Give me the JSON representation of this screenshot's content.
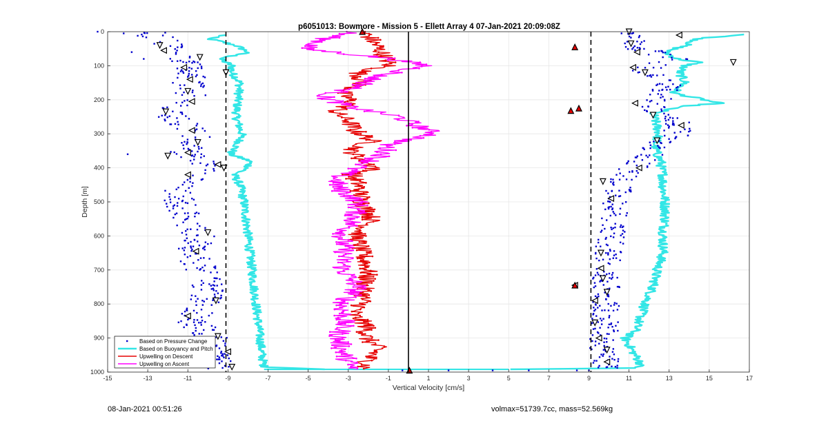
{
  "chart_data": {
    "type": "scatter",
    "title": "p6051013: Bowmore - Mission 5 - Ellett Array 4 07-Jan-2021 20:09:08Z",
    "xlabel": "Vertical Velocity [cm/s]",
    "ylabel": "Depth [m]",
    "xlim": [
      -15,
      17
    ],
    "ylim": [
      0,
      1000
    ],
    "y_reversed": true,
    "grid": true,
    "legend_position": "bottom-left",
    "xticks": [
      -15,
      -13,
      -11,
      -9,
      -7,
      -5,
      -3,
      -1,
      1,
      3,
      5,
      7,
      9,
      11,
      13,
      15,
      17
    ],
    "yticks": [
      0,
      100,
      200,
      300,
      400,
      500,
      600,
      700,
      800,
      900,
      1000
    ],
    "series": [
      {
        "name": "Based on Pressure Change",
        "style": "dots",
        "color": "#0000cd"
      },
      {
        "name": "Based on Buoyancy and Pitch",
        "style": "line",
        "color": "#33e6e6"
      },
      {
        "name": "Upwelling on Descent",
        "style": "line-dots",
        "color": "#e60000"
      },
      {
        "name": "Upwelling on Ascent",
        "style": "line-dots",
        "color": "#ff00ff"
      }
    ],
    "reference_lines": [
      {
        "x": -9.1,
        "style": "dashed",
        "color": "#000000"
      },
      {
        "x": 9.1,
        "style": "dashed",
        "color": "#000000"
      },
      {
        "x": 0,
        "style": "solid",
        "color": "#000000"
      }
    ],
    "profiles": {
      "pressure_left": [
        [
          0,
          -12.8
        ],
        [
          30,
          -12.2
        ],
        [
          50,
          -11.9
        ],
        [
          60,
          -12
        ],
        [
          80,
          -11.2
        ],
        [
          100,
          -11.1
        ],
        [
          120,
          -10.8
        ],
        [
          150,
          -11
        ],
        [
          180,
          -10.8
        ],
        [
          200,
          -11
        ],
        [
          230,
          -12
        ],
        [
          260,
          -11.5
        ],
        [
          290,
          -10.9
        ],
        [
          320,
          -10.5
        ],
        [
          350,
          -11.2
        ],
        [
          380,
          -10.3
        ],
        [
          400,
          -10
        ],
        [
          420,
          -10.8
        ],
        [
          450,
          -11.3
        ],
        [
          500,
          -11.5
        ],
        [
          550,
          -11
        ],
        [
          600,
          -10.4
        ],
        [
          650,
          -10.8
        ],
        [
          700,
          -10.3
        ],
        [
          750,
          -10
        ],
        [
          800,
          -10.2
        ],
        [
          850,
          -10.8
        ],
        [
          900,
          -9.8
        ],
        [
          950,
          -9.6
        ],
        [
          990,
          -9.3
        ]
      ],
      "pressure_right": [
        [
          0,
          11
        ],
        [
          30,
          11.2
        ],
        [
          50,
          11.5
        ],
        [
          80,
          13.5
        ],
        [
          100,
          12
        ],
        [
          120,
          11.8
        ],
        [
          150,
          13
        ],
        [
          200,
          12.5
        ],
        [
          230,
          12.2
        ],
        [
          260,
          13.3
        ],
        [
          300,
          13.5
        ],
        [
          330,
          12.5
        ],
        [
          360,
          12
        ],
        [
          400,
          11.2
        ],
        [
          420,
          10.7
        ],
        [
          450,
          10.5
        ],
        [
          500,
          10.3
        ],
        [
          550,
          10.2
        ],
        [
          600,
          10.1
        ],
        [
          650,
          10
        ],
        [
          700,
          9.9
        ],
        [
          750,
          9.9
        ],
        [
          800,
          9.8
        ],
        [
          850,
          9.8
        ],
        [
          900,
          9.7
        ],
        [
          950,
          9.8
        ],
        [
          990,
          9.9
        ]
      ],
      "buoyancy_left": [
        [
          10,
          -9.2
        ],
        [
          20,
          -10
        ],
        [
          40,
          -8.6
        ],
        [
          60,
          -8
        ],
        [
          80,
          -9.4
        ],
        [
          100,
          -8.8
        ],
        [
          120,
          -8.8
        ],
        [
          150,
          -8.4
        ],
        [
          200,
          -8.5
        ],
        [
          250,
          -8.6
        ],
        [
          300,
          -8.3
        ],
        [
          330,
          -8.5
        ],
        [
          360,
          -8.9
        ],
        [
          380,
          -7.9
        ],
        [
          400,
          -8
        ],
        [
          420,
          -8.7
        ],
        [
          450,
          -8.4
        ],
        [
          500,
          -8.2
        ],
        [
          550,
          -8.1
        ],
        [
          600,
          -8
        ],
        [
          650,
          -7.9
        ],
        [
          700,
          -7.8
        ],
        [
          750,
          -7.7
        ],
        [
          800,
          -7.6
        ],
        [
          850,
          -7.5
        ],
        [
          900,
          -7.4
        ],
        [
          950,
          -7.3
        ],
        [
          985,
          -7.2
        ],
        [
          992,
          -4
        ]
      ],
      "buoyancy_right": [
        [
          8,
          16.8
        ],
        [
          20,
          14.5
        ],
        [
          40,
          13.8
        ],
        [
          60,
          12.8
        ],
        [
          80,
          13.4
        ],
        [
          90,
          14.5
        ],
        [
          100,
          13.8
        ],
        [
          120,
          13.5
        ],
        [
          150,
          13.8
        ],
        [
          180,
          13.2
        ],
        [
          210,
          15.5
        ],
        [
          220,
          13.5
        ],
        [
          240,
          12.2
        ],
        [
          260,
          12.3
        ],
        [
          300,
          12.5
        ],
        [
          330,
          12.3
        ],
        [
          360,
          12.4
        ],
        [
          380,
          12.6
        ],
        [
          400,
          12.6
        ],
        [
          420,
          12.7
        ],
        [
          450,
          12.7
        ],
        [
          500,
          12.8
        ],
        [
          550,
          12.8
        ],
        [
          600,
          12.7
        ],
        [
          650,
          12.7
        ],
        [
          700,
          12.4
        ],
        [
          750,
          12.2
        ],
        [
          800,
          11.8
        ],
        [
          850,
          11.5
        ],
        [
          880,
          11.3
        ],
        [
          900,
          10.8
        ],
        [
          950,
          11.3
        ],
        [
          975,
          11.6
        ],
        [
          988,
          11.4
        ],
        [
          992,
          5
        ]
      ],
      "descent": [
        [
          0,
          -2.2
        ],
        [
          40,
          -1.6
        ],
        [
          80,
          -1.1
        ],
        [
          100,
          -1
        ],
        [
          120,
          -2.5
        ],
        [
          150,
          -2.3
        ],
        [
          180,
          -3.3
        ],
        [
          210,
          -2.8
        ],
        [
          235,
          -3.7
        ],
        [
          260,
          -3
        ],
        [
          290,
          -2.7
        ],
        [
          320,
          -1.8
        ],
        [
          350,
          -2.9
        ],
        [
          380,
          -2.2
        ],
        [
          400,
          -1.6
        ],
        [
          420,
          -2.8
        ],
        [
          450,
          -2.5
        ],
        [
          500,
          -2.3
        ],
        [
          550,
          -1.8
        ],
        [
          600,
          -2.6
        ],
        [
          650,
          -2.3
        ],
        [
          700,
          -2
        ],
        [
          750,
          -2.2
        ],
        [
          800,
          -2.3
        ],
        [
          830,
          -2.8
        ],
        [
          860,
          -2.1
        ],
        [
          900,
          -2.1
        ],
        [
          930,
          -1.5
        ],
        [
          960,
          -2
        ],
        [
          990,
          -2.2
        ]
      ],
      "ascent": [
        [
          0,
          -2.8
        ],
        [
          20,
          -4.1
        ],
        [
          50,
          -5.2
        ],
        [
          80,
          -0.8
        ],
        [
          100,
          0.9
        ],
        [
          130,
          -1.5
        ],
        [
          160,
          -2.4
        ],
        [
          190,
          -4.3
        ],
        [
          220,
          -3
        ],
        [
          250,
          -0.5
        ],
        [
          270,
          0.2
        ],
        [
          300,
          1.4
        ],
        [
          330,
          -1
        ],
        [
          360,
          -1.2
        ],
        [
          400,
          -2.6
        ],
        [
          430,
          -3.6
        ],
        [
          460,
          -3.5
        ],
        [
          500,
          -2.5
        ],
        [
          550,
          -2.7
        ],
        [
          600,
          -3.3
        ],
        [
          650,
          -3.2
        ],
        [
          700,
          -3.3
        ],
        [
          750,
          -2.5
        ],
        [
          800,
          -3.3
        ],
        [
          850,
          -3.2
        ],
        [
          900,
          -3.5
        ],
        [
          950,
          -3.2
        ],
        [
          990,
          -2.8
        ]
      ],
      "markers_left": [
        [
          40,
          -12.4
        ],
        [
          55,
          -12.2
        ],
        [
          75,
          -10.4
        ],
        [
          105,
          -11.2
        ],
        [
          120,
          -9.1
        ],
        [
          140,
          -10.9
        ],
        [
          175,
          -11
        ],
        [
          205,
          -10.8
        ],
        [
          235,
          -12.1
        ],
        [
          290,
          -10.8
        ],
        [
          325,
          -10.5
        ],
        [
          355,
          -11
        ],
        [
          365,
          -12
        ],
        [
          390,
          -9.5
        ],
        [
          400,
          -9.2
        ],
        [
          420,
          -11
        ],
        [
          590,
          -10
        ],
        [
          645,
          -10.6
        ],
        [
          790,
          -9.6
        ],
        [
          835,
          -11
        ],
        [
          895,
          -9.5
        ],
        [
          940,
          -9
        ],
        [
          985,
          -8.8
        ]
      ],
      "markers_right": [
        [
          0,
          11
        ],
        [
          10,
          13.5
        ],
        [
          35,
          11.1
        ],
        [
          60,
          11.4
        ],
        [
          90,
          16.2
        ],
        [
          105,
          11.2
        ],
        [
          120,
          11.8
        ],
        [
          210,
          11.3
        ],
        [
          245,
          12.2
        ],
        [
          275,
          13.6
        ],
        [
          320,
          12.4
        ],
        [
          400,
          11.5
        ],
        [
          440,
          9.7
        ],
        [
          490,
          10.1
        ],
        [
          650,
          9.6
        ],
        [
          695,
          9.6
        ],
        [
          725,
          9.7
        ],
        [
          745,
          8.3
        ],
        [
          765,
          9.9
        ],
        [
          790,
          9.3
        ],
        [
          855,
          9.3
        ],
        [
          900,
          9.5
        ],
        [
          935,
          9.9
        ],
        [
          970,
          9.9
        ]
      ],
      "markers_filled": [
        [
          45,
          8.3
        ],
        [
          225,
          8.5
        ],
        [
          232,
          8.1
        ],
        [
          745,
          8.3
        ],
        [
          995,
          0.05
        ],
        [
          0,
          -2.3
        ]
      ]
    }
  },
  "footer": {
    "left": "08-Jan-2021 00:51:26",
    "right": "volmax=51739.7cc, mass=52.569kg"
  }
}
